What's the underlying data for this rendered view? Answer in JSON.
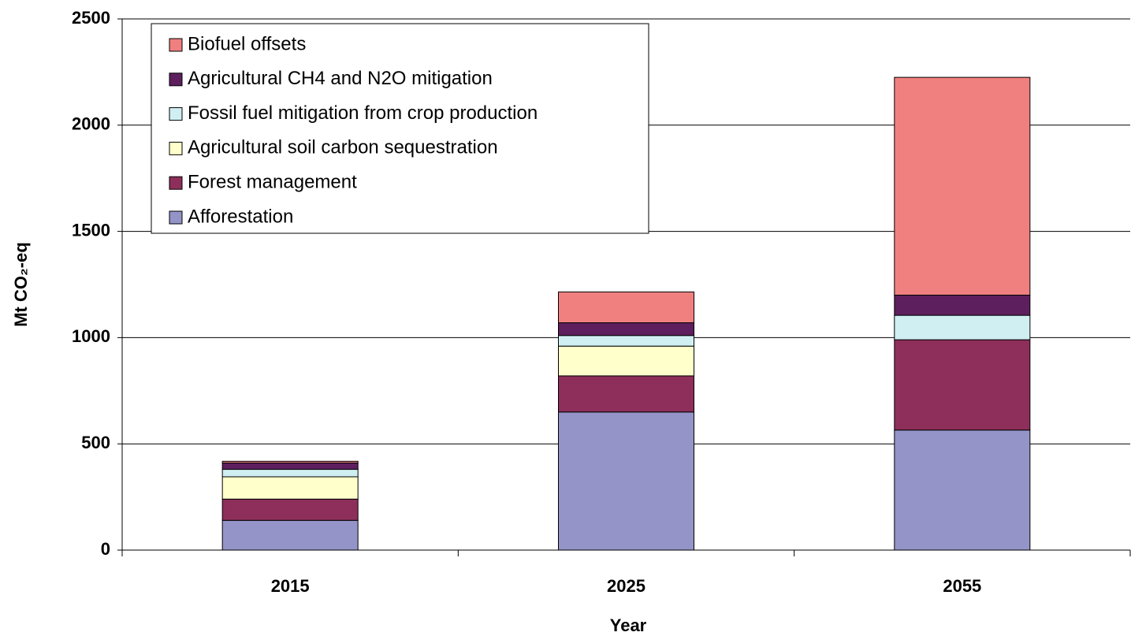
{
  "chart_data": {
    "type": "stacked_bar",
    "categories": [
      "2015",
      "2025",
      "2055"
    ],
    "series": [
      {
        "name": "Afforestation",
        "color": "#9494c8",
        "values": [
          140,
          650,
          565
        ]
      },
      {
        "name": "Forest management",
        "color": "#8e2f5b",
        "values": [
          100,
          170,
          425
        ]
      },
      {
        "name": "Agricultural soil carbon sequestration",
        "color": "#ffffcc",
        "values": [
          105,
          140,
          0
        ]
      },
      {
        "name": "Fossil fuel mitigation from crop production",
        "color": "#d0eff3",
        "values": [
          35,
          50,
          115
        ]
      },
      {
        "name": "Agricultural CH4 and N2O mitigation",
        "color": "#5e1f5e",
        "values": [
          30,
          60,
          95
        ]
      },
      {
        "name": "Biofuel offsets",
        "color": "#f08080",
        "values": [
          8,
          145,
          1025
        ]
      }
    ],
    "ylim": [
      0,
      2500
    ],
    "yticks": [
      0,
      500,
      1000,
      1500,
      2000,
      2500
    ],
    "xlabel": "Year",
    "ylabel": "Mt CO₂-eq",
    "grid": true,
    "legend": "upper left"
  }
}
